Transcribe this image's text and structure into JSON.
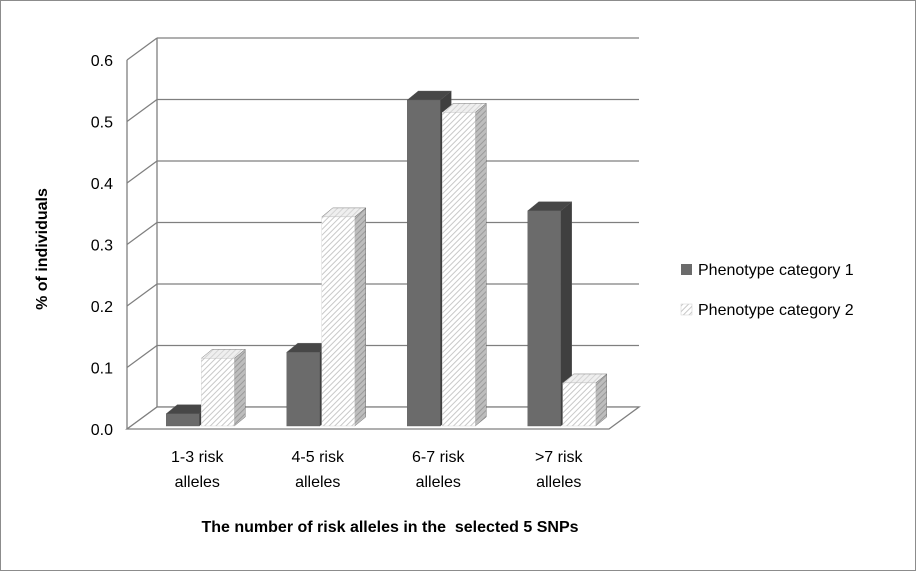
{
  "chart_data": {
    "type": "bar",
    "style": "3d-clustered-column",
    "title": "",
    "xlabel": "The number of risk alleles in the  selected 5 SNPs",
    "ylabel": "% of individuals",
    "ylim": [
      0,
      0.6
    ],
    "yticks": [
      "0.0",
      "0.1",
      "0.2",
      "0.3",
      "0.4",
      "0.5",
      "0.6"
    ],
    "yticks_values": [
      0,
      0.1,
      0.2,
      0.3,
      0.4,
      0.5,
      0.6
    ],
    "grid": true,
    "legend_position": "right",
    "categories": [
      [
        "1-3 risk",
        "alleles"
      ],
      [
        "4-5 risk",
        "alleles"
      ],
      [
        "6-7 risk",
        "alleles"
      ],
      [
        ">7 risk",
        "alleles"
      ]
    ],
    "series": [
      {
        "name": "Phenotype category 1",
        "values": [
          0.02,
          0.12,
          0.53,
          0.35
        ],
        "fill": "solid-dark-gray",
        "color": "#6b6b6b"
      },
      {
        "name": "Phenotype category 2",
        "values": [
          0.11,
          0.34,
          0.51,
          0.07
        ],
        "fill": "hatched-light-gray",
        "color": "#d8d8d8"
      }
    ]
  }
}
